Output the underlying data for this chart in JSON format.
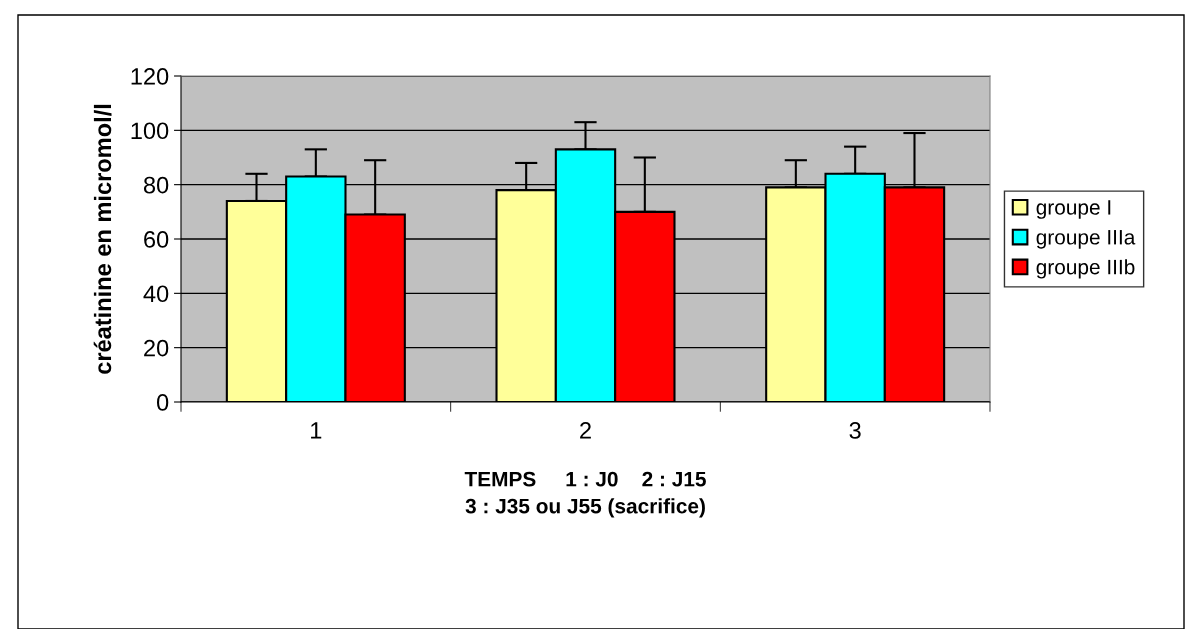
{
  "chart_data": {
    "type": "bar",
    "xlabel": "TEMPS     1 : J0    2 : J15\n3 : J35 ou J55 (sacrifice)",
    "ylabel": "créatinine en micromol/l",
    "categories": [
      "1",
      "2",
      "3"
    ],
    "series": [
      {
        "name": "groupe I",
        "color": "#ffff99",
        "values": [
          74,
          78,
          79
        ],
        "errors": [
          [
            74,
            84
          ],
          [
            78,
            88
          ],
          [
            79,
            89
          ]
        ]
      },
      {
        "name": "groupe IIIa",
        "color": "#00ffff",
        "values": [
          83,
          93,
          84
        ],
        "errors": [
          [
            83,
            93
          ],
          [
            93,
            103
          ],
          [
            84,
            94
          ]
        ]
      },
      {
        "name": "groupe IIIb",
        "color": "#ff0000",
        "values": [
          69,
          70,
          79
        ],
        "errors": [
          [
            69,
            89
          ],
          [
            70,
            90
          ],
          [
            79,
            99
          ]
        ]
      }
    ],
    "ylim": [
      0,
      120
    ],
    "yticks": [
      0,
      20,
      40,
      60,
      80,
      100,
      120
    ],
    "grid": "y",
    "legend": "right"
  }
}
